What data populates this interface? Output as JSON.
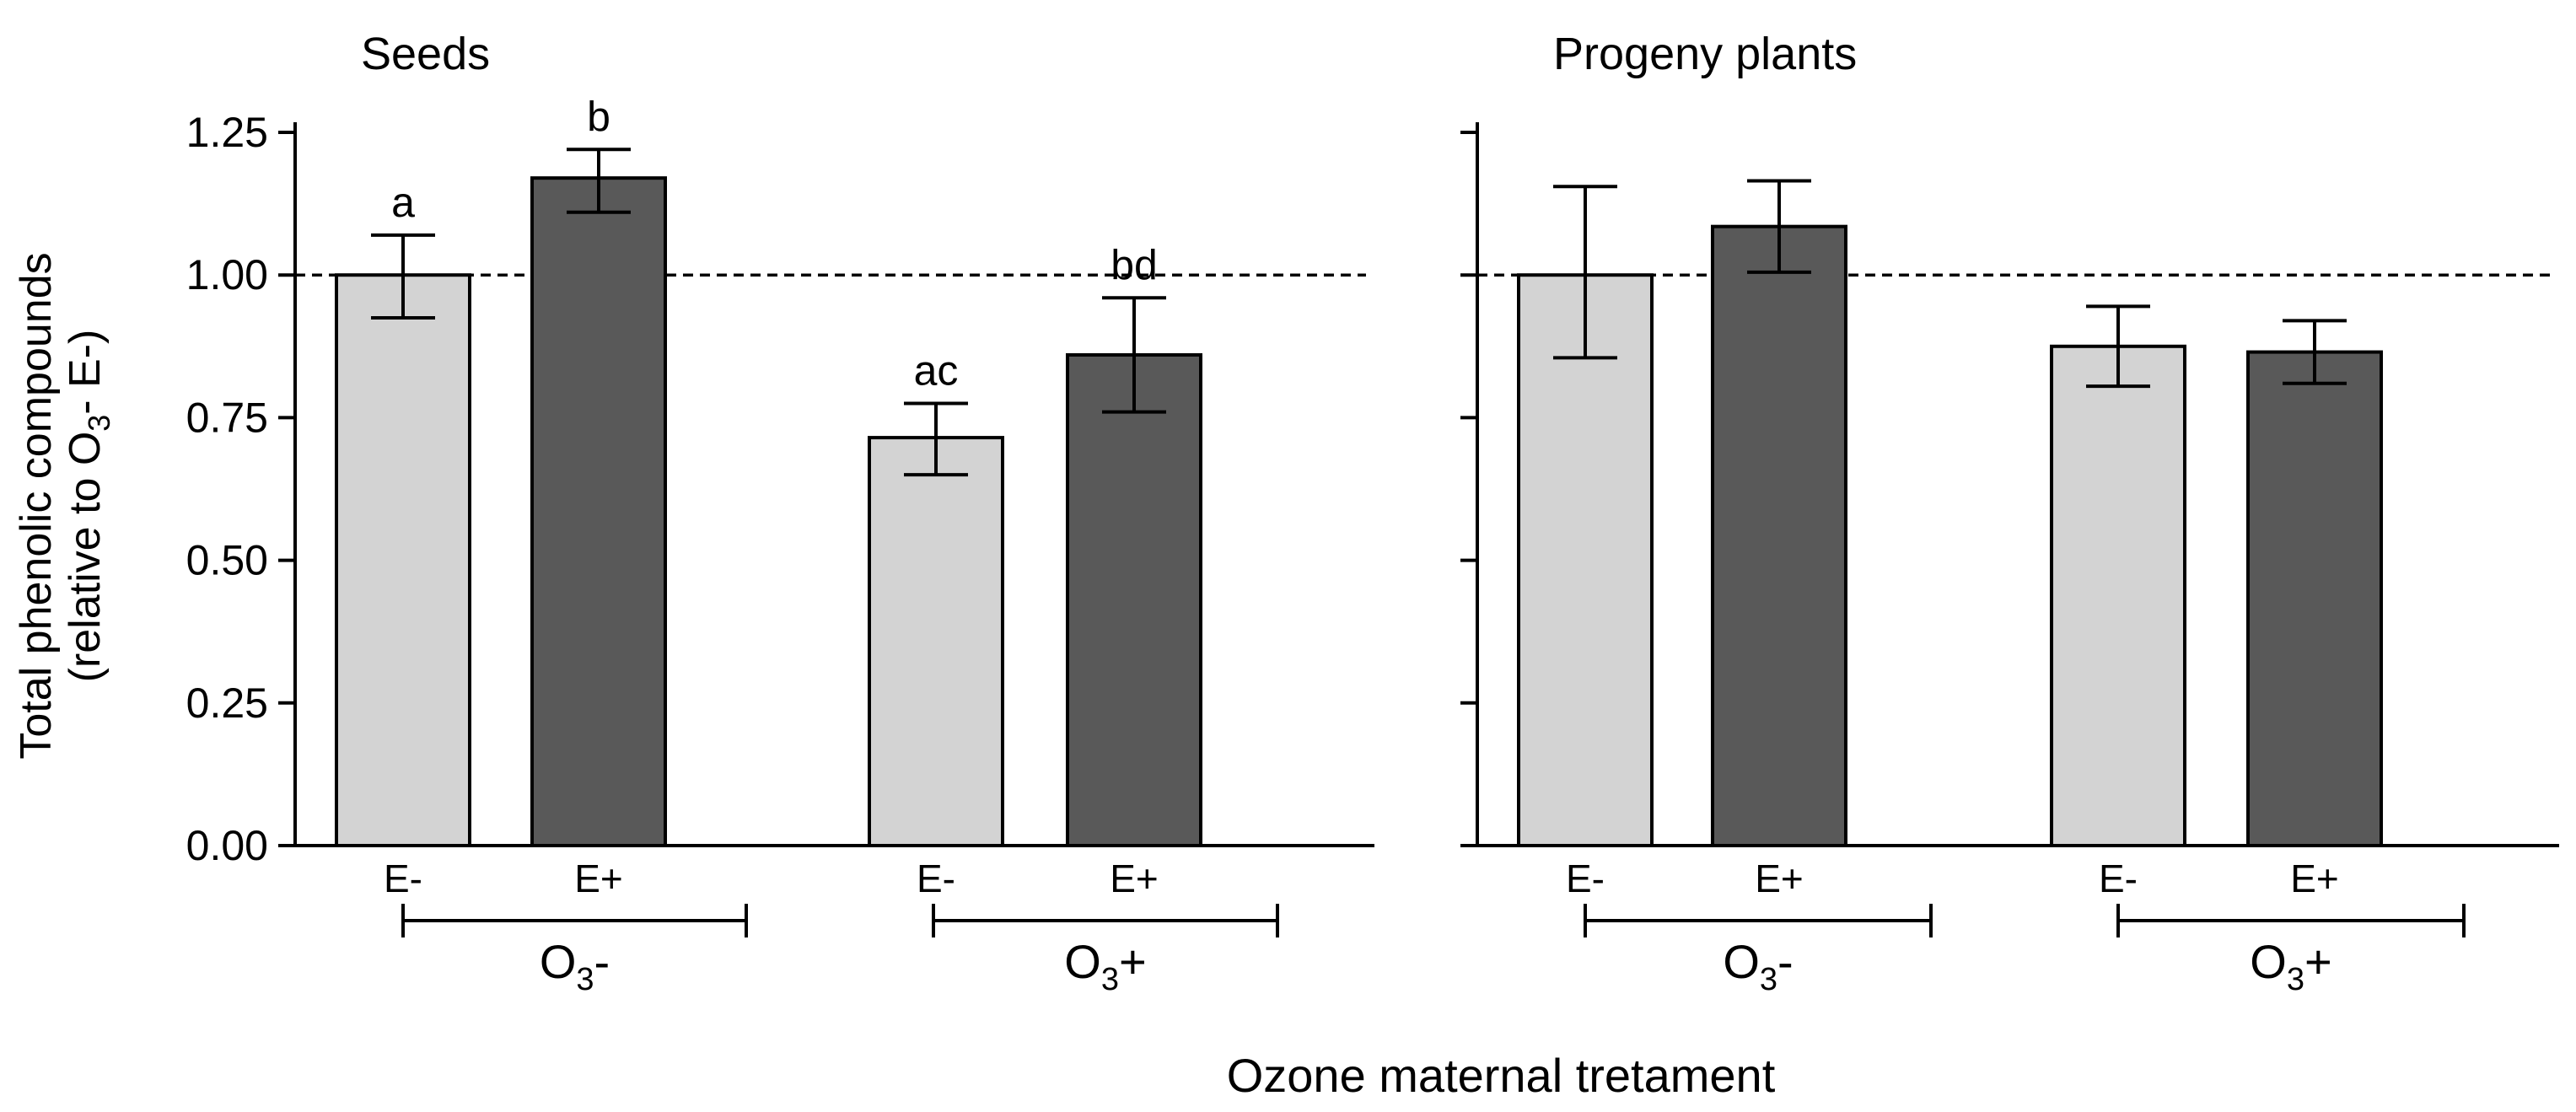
{
  "chart_data": {
    "type": "bar",
    "xlabel": "Ozone maternal tretament",
    "ylabel_line1": "Total phenolic compounds",
    "ylabel_line2_prefix": "(relative to O",
    "ylabel_line2_sub": "3",
    "ylabel_line2_suffix": "- E-)",
    "ylim": [
      0,
      1.25
    ],
    "yticks": [
      0,
      0.25,
      0.5,
      0.75,
      1.0,
      1.25
    ],
    "ytick_labels": [
      "0.00",
      "0.25",
      "0.50",
      "0.75",
      "1.00",
      "1.25"
    ],
    "reference_line": 1.0,
    "legend": [
      {
        "name": "E-",
        "color": "#d3d3d3"
      },
      {
        "name": "E+",
        "color": "#595959"
      }
    ],
    "panels": [
      {
        "id": "seeds",
        "title": "Seeds",
        "groups": [
          {
            "label_main": "O",
            "label_sub": "3",
            "label_suffix": "-",
            "bars": [
              {
                "category": "E-",
                "value": 1.0,
                "err_low": 0.925,
                "err_high": 1.07,
                "letter": "a"
              },
              {
                "category": "E+",
                "value": 1.17,
                "err_low": 1.11,
                "err_high": 1.22,
                "letter": "b"
              }
            ]
          },
          {
            "label_main": "O",
            "label_sub": "3",
            "label_suffix": "+",
            "bars": [
              {
                "category": "E-",
                "value": 0.715,
                "err_low": 0.65,
                "err_high": 0.775,
                "letter": "ac"
              },
              {
                "category": "E+",
                "value": 0.86,
                "err_low": 0.76,
                "err_high": 0.96,
                "letter": "bd"
              }
            ]
          }
        ]
      },
      {
        "id": "progeny",
        "title": "Progeny plants",
        "groups": [
          {
            "label_main": "O",
            "label_sub": "3",
            "label_suffix": "-",
            "bars": [
              {
                "category": "E-",
                "value": 1.0,
                "err_low": 0.855,
                "err_high": 1.155,
                "letter": ""
              },
              {
                "category": "E+",
                "value": 1.085,
                "err_low": 1.005,
                "err_high": 1.165,
                "letter": ""
              }
            ]
          },
          {
            "label_main": "O",
            "label_sub": "3",
            "label_suffix": "+",
            "bars": [
              {
                "category": "E-",
                "value": 0.875,
                "err_low": 0.805,
                "err_high": 0.945,
                "letter": ""
              },
              {
                "category": "E+",
                "value": 0.865,
                "err_low": 0.81,
                "err_high": 0.92,
                "letter": ""
              }
            ]
          }
        ]
      }
    ]
  }
}
